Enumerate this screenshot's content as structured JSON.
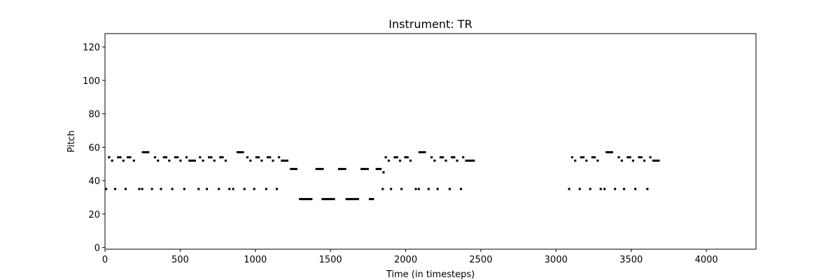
{
  "chart_data": {
    "type": "scatter",
    "title": "Instrument: TR",
    "xlabel": "Time (in timesteps)",
    "ylabel": "Pitch",
    "xlim": [
      0,
      4330
    ],
    "ylim": [
      -1,
      128
    ],
    "xticks": [
      0,
      500,
      1000,
      1500,
      2000,
      2500,
      3000,
      3500,
      4000
    ],
    "yticks": [
      0,
      20,
      40,
      60,
      80,
      100,
      120
    ],
    "grid": false,
    "legend": "none",
    "note_color": "#000000",
    "series": [
      {
        "notes": [
          [
            0,
            35,
            15
          ],
          [
            60,
            35,
            15
          ],
          [
            130,
            35,
            15
          ],
          [
            220,
            35,
            15
          ],
          [
            240,
            35,
            15
          ],
          [
            305,
            35,
            15
          ],
          [
            365,
            35,
            15
          ],
          [
            440,
            35,
            15
          ],
          [
            520,
            35,
            15
          ],
          [
            615,
            35,
            15
          ],
          [
            670,
            35,
            15
          ],
          [
            750,
            35,
            15
          ],
          [
            820,
            35,
            15
          ],
          [
            845,
            35,
            15
          ],
          [
            920,
            35,
            15
          ],
          [
            985,
            35,
            15
          ],
          [
            1065,
            35,
            15
          ],
          [
            1135,
            35,
            15
          ],
          [
            20,
            54,
            15
          ],
          [
            40,
            52,
            15
          ],
          [
            80,
            54,
            30
          ],
          [
            115,
            52,
            15
          ],
          [
            145,
            54,
            30
          ],
          [
            185,
            52,
            15
          ],
          [
            245,
            57,
            50
          ],
          [
            325,
            54,
            15
          ],
          [
            345,
            52,
            15
          ],
          [
            385,
            54,
            30
          ],
          [
            420,
            52,
            15
          ],
          [
            460,
            54,
            30
          ],
          [
            495,
            52,
            15
          ],
          [
            535,
            54,
            15
          ],
          [
            555,
            52,
            50
          ],
          [
            625,
            54,
            15
          ],
          [
            645,
            52,
            15
          ],
          [
            685,
            54,
            30
          ],
          [
            720,
            52,
            15
          ],
          [
            760,
            54,
            30
          ],
          [
            795,
            52,
            15
          ],
          [
            875,
            57,
            50
          ],
          [
            940,
            54,
            15
          ],
          [
            960,
            52,
            15
          ],
          [
            1000,
            54,
            30
          ],
          [
            1035,
            52,
            15
          ],
          [
            1075,
            54,
            30
          ],
          [
            1110,
            52,
            15
          ],
          [
            1150,
            54,
            15
          ],
          [
            1170,
            52,
            50
          ],
          [
            1230,
            47,
            50
          ],
          [
            1290,
            29,
            90
          ],
          [
            1400,
            47,
            40
          ],
          [
            1440,
            47,
            15
          ],
          [
            1440,
            29,
            90
          ],
          [
            1550,
            47,
            40
          ],
          [
            1590,
            47,
            15
          ],
          [
            1600,
            29,
            90
          ],
          [
            1700,
            47,
            40
          ],
          [
            1740,
            47,
            15
          ],
          [
            1755,
            29,
            35
          ],
          [
            1800,
            47,
            40
          ],
          [
            1845,
            45,
            15
          ],
          [
            1840,
            35,
            15
          ],
          [
            1895,
            35,
            15
          ],
          [
            1965,
            35,
            15
          ],
          [
            2060,
            35,
            15
          ],
          [
            2080,
            35,
            15
          ],
          [
            2145,
            35,
            15
          ],
          [
            2205,
            35,
            15
          ],
          [
            2285,
            35,
            15
          ],
          [
            2360,
            35,
            15
          ],
          [
            1860,
            54,
            15
          ],
          [
            1880,
            52,
            15
          ],
          [
            1920,
            54,
            30
          ],
          [
            1955,
            52,
            15
          ],
          [
            1990,
            54,
            30
          ],
          [
            2025,
            52,
            15
          ],
          [
            2085,
            57,
            50
          ],
          [
            2165,
            54,
            15
          ],
          [
            2185,
            52,
            15
          ],
          [
            2225,
            54,
            30
          ],
          [
            2260,
            52,
            15
          ],
          [
            2300,
            54,
            30
          ],
          [
            2335,
            52,
            15
          ],
          [
            2375,
            54,
            15
          ],
          [
            2395,
            52,
            50
          ],
          [
            2440,
            52,
            20
          ],
          [
            3080,
            35,
            15
          ],
          [
            3150,
            35,
            15
          ],
          [
            3220,
            35,
            15
          ],
          [
            3290,
            35,
            15
          ],
          [
            3315,
            35,
            15
          ],
          [
            3385,
            35,
            15
          ],
          [
            3445,
            35,
            15
          ],
          [
            3520,
            35,
            15
          ],
          [
            3600,
            35,
            15
          ],
          [
            3100,
            54,
            15
          ],
          [
            3120,
            52,
            15
          ],
          [
            3160,
            54,
            30
          ],
          [
            3195,
            52,
            15
          ],
          [
            3235,
            54,
            30
          ],
          [
            3270,
            52,
            15
          ],
          [
            3330,
            57,
            50
          ],
          [
            3410,
            54,
            15
          ],
          [
            3430,
            52,
            15
          ],
          [
            3470,
            54,
            30
          ],
          [
            3505,
            52,
            15
          ],
          [
            3545,
            54,
            30
          ],
          [
            3580,
            52,
            15
          ],
          [
            3620,
            54,
            15
          ],
          [
            3640,
            52,
            50
          ]
        ]
      }
    ]
  }
}
